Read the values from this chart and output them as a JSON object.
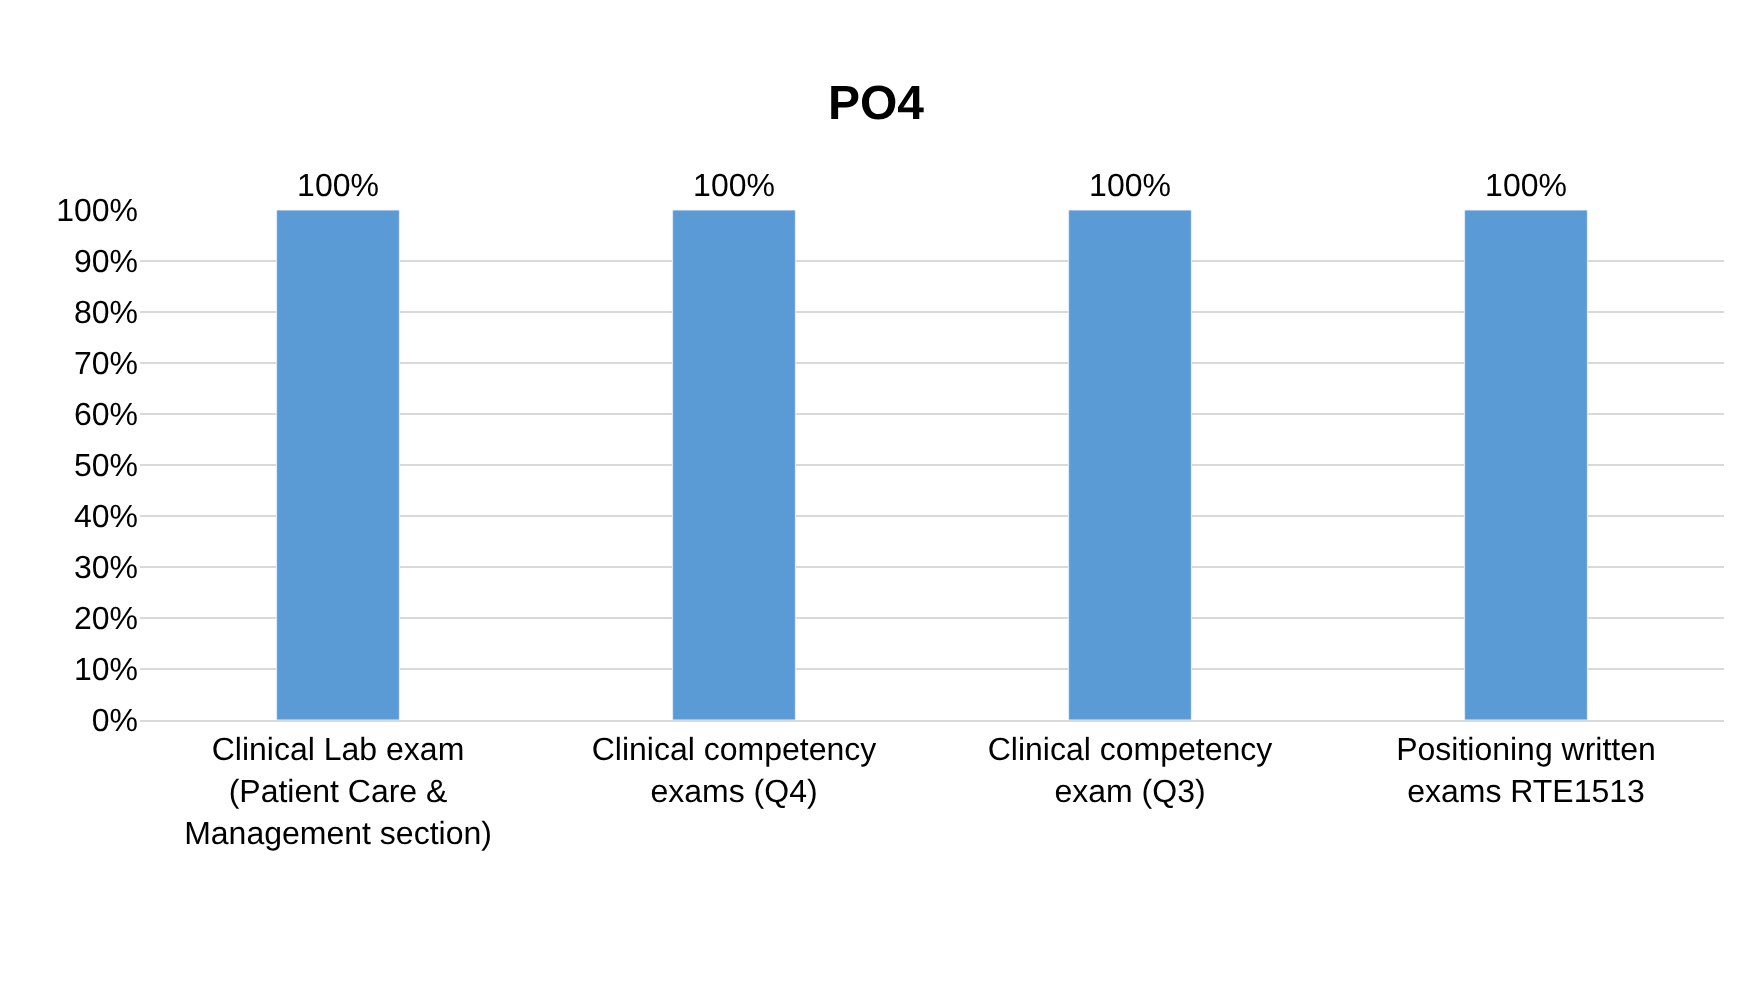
{
  "chart_data": {
    "type": "bar",
    "title": "PO4",
    "categories": [
      "Clinical Lab exam (Patient Care & Management section)",
      "Clinical competency exams (Q4)",
      "Clinical competency exam (Q3)",
      "Positioning written exams RTE1513"
    ],
    "values": [
      100,
      100,
      100,
      100
    ],
    "color": "#5b9bd5",
    "value_labels": [
      "100%",
      "100%",
      "100%",
      "100%"
    ],
    "ylim": [
      0,
      100
    ],
    "yticks": [
      {
        "value": 0,
        "label": "0%"
      },
      {
        "value": 10,
        "label": "10%"
      },
      {
        "value": 20,
        "label": "20%"
      },
      {
        "value": 30,
        "label": "30%"
      },
      {
        "value": 40,
        "label": "40%"
      },
      {
        "value": 50,
        "label": "50%"
      },
      {
        "value": 60,
        "label": "60%"
      },
      {
        "value": 70,
        "label": "70%"
      },
      {
        "value": 80,
        "label": "80%"
      },
      {
        "value": 90,
        "label": "90%"
      },
      {
        "value": 100,
        "label": "100%"
      }
    ],
    "grid": "y"
  }
}
